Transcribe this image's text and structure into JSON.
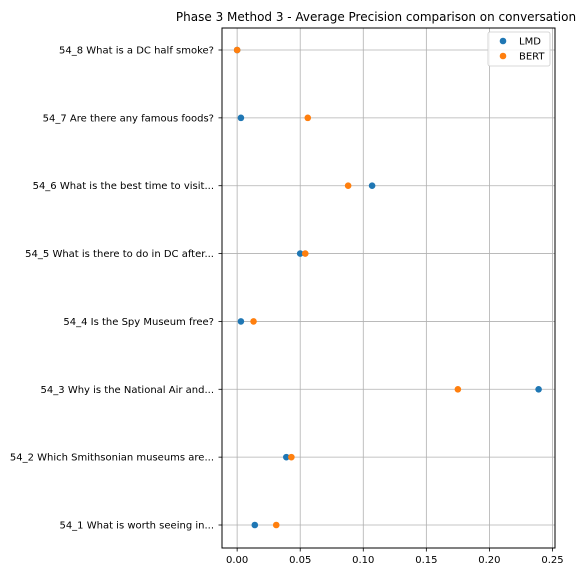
{
  "chart_data": {
    "type": "scatter",
    "title": "Phase 3 Method 3 - Average Precision comparison on conversation",
    "xlabel": "",
    "ylabel": "",
    "xlim": [
      -0.012,
      0.252
    ],
    "xticks": [
      "0.00",
      "0.05",
      "0.10",
      "0.15",
      "0.20",
      "0.25"
    ],
    "xtick_values": [
      0.0,
      0.05,
      0.1,
      0.15,
      0.2,
      0.25
    ],
    "categories": [
      "54_1 What is worth seeing in...",
      "54_2 Which Smithsonian museums are...",
      "54_3 Why is the National Air and...",
      "54_4 Is the Spy Museum free?",
      "54_5 What is there to do in DC after...",
      "54_6 What is the best time to visit...",
      "54_7 Are there any famous foods?",
      "54_8 What is a DC half smoke?"
    ],
    "series": [
      {
        "name": "LMD",
        "color": "#1f77b4",
        "values": [
          0.014,
          0.039,
          0.239,
          0.003,
          0.05,
          0.107,
          0.003,
          0.0
        ]
      },
      {
        "name": "BERT",
        "color": "#ff7f0e",
        "values": [
          0.031,
          0.043,
          0.175,
          0.013,
          0.054,
          0.088,
          0.056,
          0.0
        ]
      }
    ],
    "grid": true,
    "legend_position": "top-right"
  }
}
